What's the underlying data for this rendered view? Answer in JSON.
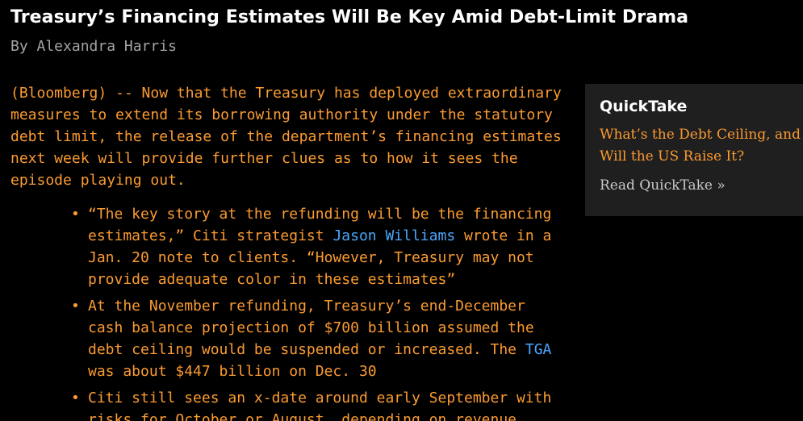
{
  "article": {
    "headline": "Treasury’s Financing Estimates Will Be Key Amid Debt-Limit Drama",
    "byline": "By Alexandra Harris",
    "lead": "(Bloomberg) -- Now that the Treasury has deployed extraordinary measures to extend its borrowing authority under the statutory debt limit, the release of the department’s financing estimates next week will provide further clues as to how it sees the episode playing out.",
    "bullets": [
      {
        "pre": "“The key story at the refunding will be the financing estimates,” Citi strategist ",
        "link": "Jason Williams",
        "post": " wrote in a Jan. 20 note to clients. “However, Treasury may not provide adequate color in these estimates”"
      },
      {
        "pre": "At the November refunding, Treasury’s end-December cash balance projection of $700 billion assumed the debt ceiling would be suspended or increased. The ",
        "link": "TGA",
        "post": " was about $447 billion on Dec. 30"
      },
      {
        "text": "Citi still sees an x-date around early September with risks for October or August, depending on revenue"
      }
    ],
    "bullet_marker": "•"
  },
  "quicktake": {
    "title": "QuickTake",
    "question": "What’s the Debt Ceiling, and Will the US Raise It?",
    "read_label": "Read QuickTake »"
  },
  "colors": {
    "background": "#000000",
    "headline": "#ffffff",
    "byline": "#a3a3a3",
    "body_text": "#fb9b31",
    "link": "#4aa8ff",
    "panel": "#1f1f1f"
  }
}
